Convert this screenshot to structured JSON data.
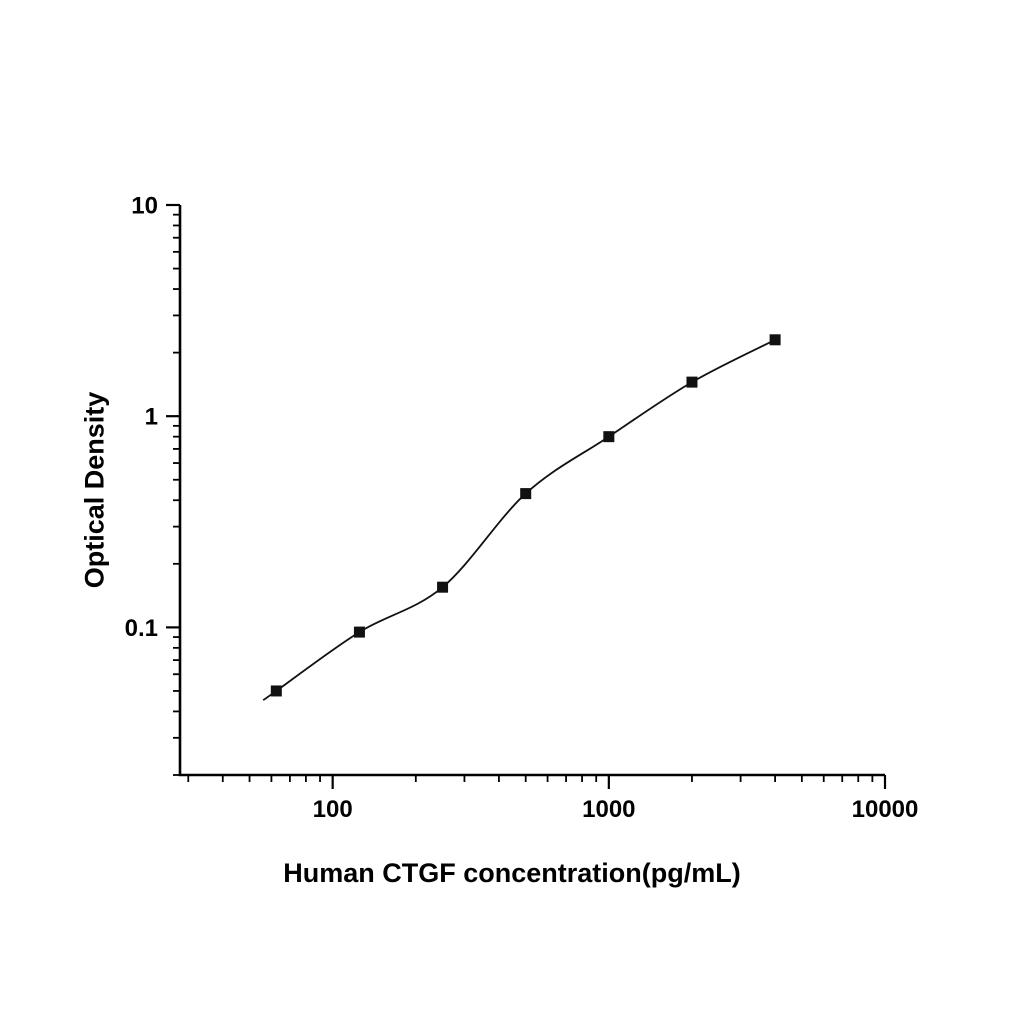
{
  "chart_data": {
    "type": "scatter",
    "title": "",
    "xlabel": "Human CTGF concentration(pg/mL)",
    "ylabel": "Optical Density",
    "x_scale": "log",
    "y_scale": "log",
    "xlim": [
      28,
      10000
    ],
    "ylim": [
      0.02,
      10
    ],
    "x_ticks": [
      100,
      1000,
      10000
    ],
    "y_ticks": [
      0.1,
      1,
      10
    ],
    "x": [
      62.5,
      125,
      250,
      500,
      1000,
      2000,
      4000
    ],
    "y": [
      0.05,
      0.095,
      0.155,
      0.43,
      0.8,
      1.45,
      2.3
    ],
    "marker": "square",
    "marker_color": "#111111",
    "line_color": "#111111",
    "axis_color": "#000000",
    "background": "#ffffff",
    "legend": "none",
    "grid": "off"
  }
}
